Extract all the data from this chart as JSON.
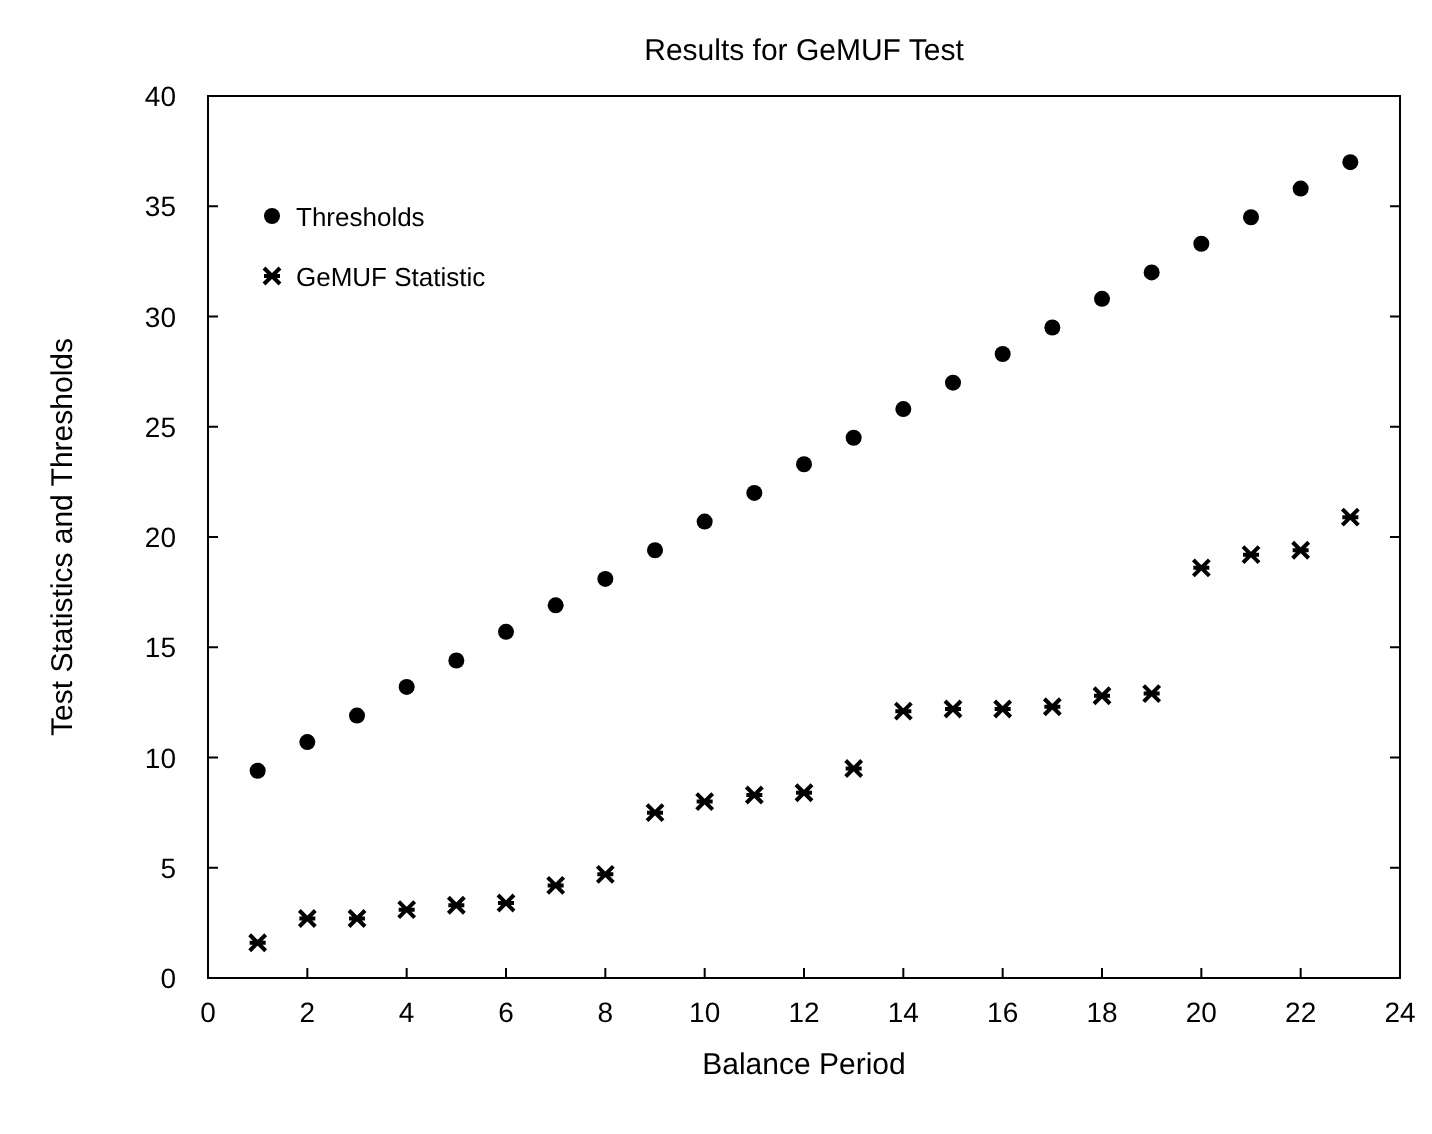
{
  "chart_data": {
    "type": "scatter",
    "title": "Results for GeMUF Test",
    "xlabel": "Balance Period",
    "ylabel": "Test Statistics and Thresholds",
    "x": [
      1,
      2,
      3,
      4,
      5,
      6,
      7,
      8,
      9,
      10,
      11,
      12,
      13,
      14,
      15,
      16,
      17,
      18,
      19,
      20,
      21,
      22,
      23
    ],
    "series": [
      {
        "name": "Thresholds",
        "color": "#000000",
        "marker": "circle",
        "values": [
          9.4,
          10.7,
          11.9,
          13.2,
          14.4,
          15.7,
          16.9,
          18.1,
          19.4,
          20.7,
          22.0,
          23.3,
          24.5,
          25.8,
          27.0,
          28.3,
          29.5,
          30.8,
          32.0,
          33.3,
          34.5,
          35.8,
          37.0
        ]
      },
      {
        "name": "GeMUF Statistic",
        "color": "#000000",
        "marker": "cross",
        "values": [
          1.6,
          2.7,
          2.7,
          3.1,
          3.3,
          3.4,
          4.2,
          4.7,
          7.5,
          8.0,
          8.3,
          8.4,
          9.5,
          12.1,
          12.2,
          12.2,
          12.3,
          12.8,
          12.9,
          18.6,
          19.2,
          19.4,
          20.9
        ]
      }
    ],
    "xlim": [
      0,
      24
    ],
    "xticks": [
      0,
      2,
      4,
      6,
      8,
      10,
      12,
      14,
      16,
      18,
      20,
      22,
      24
    ],
    "ylim": [
      0,
      40
    ],
    "yticks": [
      0,
      5,
      10,
      15,
      20,
      25,
      30,
      35,
      40
    ],
    "grid": false,
    "legend": "top left"
  }
}
